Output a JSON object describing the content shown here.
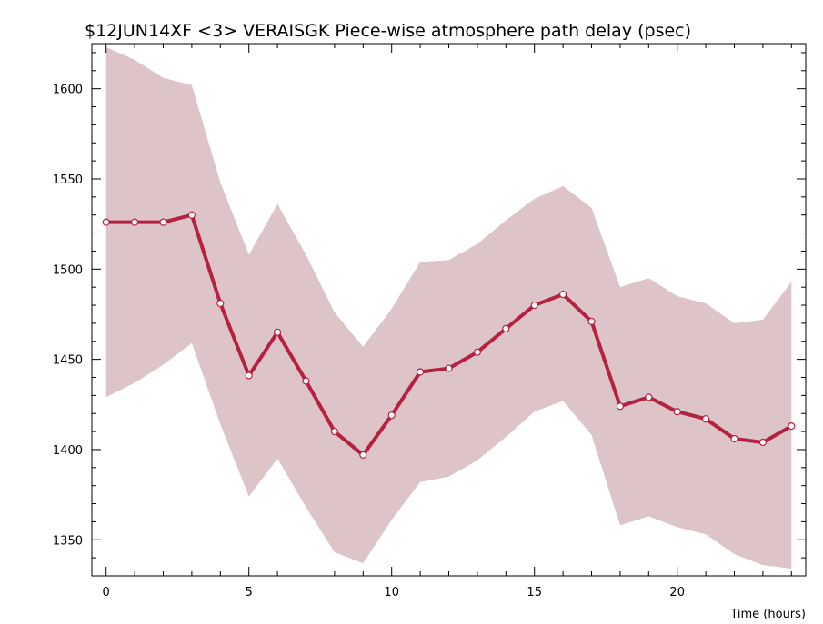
{
  "chart_data": {
    "type": "line",
    "title": "$12JUN14XF <3>  VERAISGK  Piece-wise atmosphere path delay (psec)",
    "xlabel": "Time (hours)",
    "ylabel": "",
    "xlim": [
      -0.5,
      24.5
    ],
    "ylim": [
      1330,
      1625
    ],
    "x_ticks": [
      0,
      5,
      10,
      15,
      20
    ],
    "y_ticks": [
      1350,
      1400,
      1450,
      1500,
      1550,
      1600
    ],
    "x_tick_labels": [
      "0",
      "5",
      "10",
      "15",
      "20"
    ],
    "y_tick_labels": [
      "1350",
      "1400",
      "1450",
      "1500",
      "1550",
      "1600"
    ],
    "grid": false,
    "colors": {
      "line": "#b5213f",
      "band": "#dcc4c8",
      "marker_fill": "#ffffff",
      "axis": "#000000"
    },
    "series": [
      {
        "x": [
          0,
          1,
          2,
          3,
          4,
          5,
          6,
          7,
          8,
          9,
          10,
          11,
          12,
          13,
          14,
          15,
          16,
          17,
          18,
          19,
          20,
          21,
          22,
          23,
          24
        ],
        "values": [
          1526,
          1526,
          1526,
          1530,
          1481,
          1441,
          1465,
          1438,
          1410,
          1397,
          1419,
          1443,
          1445,
          1454,
          1467,
          1480,
          1486,
          1471,
          1424,
          1429,
          1421,
          1417,
          1406,
          1404,
          1413
        ],
        "upper": [
          1623,
          1616,
          1606,
          1602,
          1548,
          1508,
          1536,
          1508,
          1476,
          1457,
          1478,
          1504,
          1505,
          1514,
          1527,
          1539,
          1546,
          1534,
          1490,
          1495,
          1485,
          1481,
          1470,
          1472,
          1493
        ],
        "lower": [
          1429,
          1437,
          1447,
          1459,
          1414,
          1374,
          1395,
          1368,
          1343,
          1337,
          1361,
          1382,
          1385,
          1394,
          1407,
          1421,
          1427,
          1408,
          1358,
          1363,
          1357,
          1353,
          1342,
          1336,
          1334
        ]
      }
    ]
  }
}
